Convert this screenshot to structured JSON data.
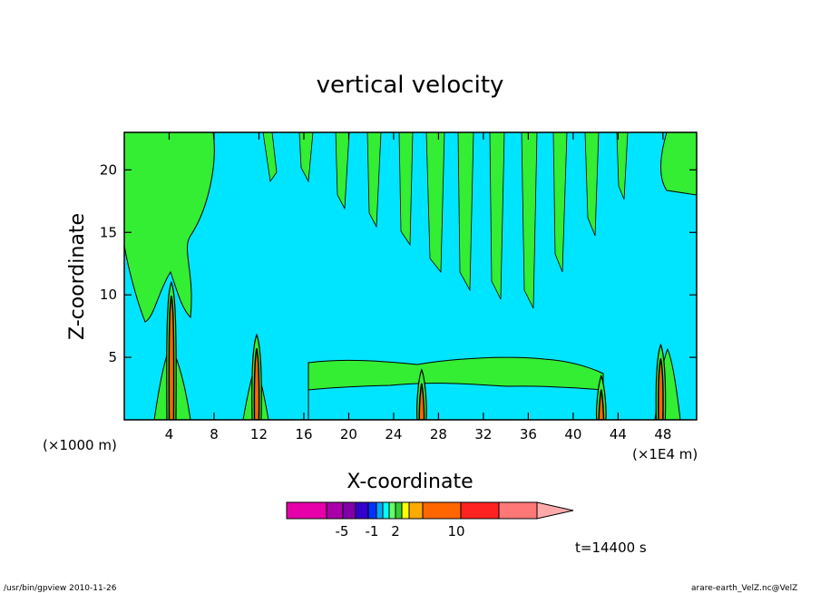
{
  "chart_data": {
    "type": "heatmap",
    "title": "vertical velocity",
    "xlabel": "X-coordinate",
    "ylabel": "Z-coordinate",
    "x_unit_left": "(×1000 m)",
    "x_unit_right": "(×1E4 m)",
    "x_ticks": [
      4,
      8,
      12,
      16,
      20,
      24,
      28,
      32,
      36,
      40,
      44,
      48
    ],
    "y_ticks": [
      5,
      10,
      15,
      20
    ],
    "xlim": [
      0,
      51
    ],
    "ylim": [
      0,
      23
    ],
    "background_color": "#00e5ff",
    "positive_color": "#33ee33",
    "colorbar": {
      "colors": [
        "#e600aa",
        "#aa00aa",
        "#8000aa",
        "#3300cc",
        "#0033ff",
        "#00aaff",
        "#00ffff",
        "#66ff66",
        "#33cc33",
        "#ffff00",
        "#ffaa00",
        "#ff6600",
        "#ff2222",
        "#ff7777",
        "#ffaaaa"
      ],
      "labels": [
        "-5",
        "-1",
        "2",
        "10"
      ]
    },
    "updrafts": [
      {
        "x": 4.2,
        "top": 11.0
      },
      {
        "x": 11.8,
        "top": 6.8
      },
      {
        "x": 47.8,
        "top": 6.0
      },
      {
        "x": 42.5,
        "top": 3.5
      },
      {
        "x": 26.5,
        "top": 4.0
      }
    ]
  },
  "time_label": "t=14400 s",
  "footer_left": "/usr/bin/gpview  2010-11-26",
  "footer_right": "arare-earth_VelZ.nc@VelZ"
}
